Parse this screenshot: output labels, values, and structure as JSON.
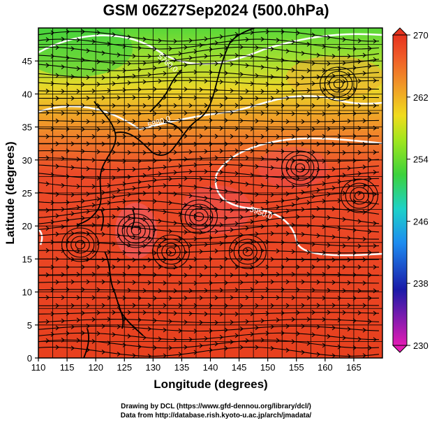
{
  "title": "GSM 06Z27Sep2024 (500.0hPa)",
  "x_axis": {
    "label": "Longitude (degrees)",
    "ticks": [
      "110",
      "115",
      "120",
      "125",
      "130",
      "135",
      "140",
      "145",
      "150",
      "155",
      "160",
      "165"
    ]
  },
  "y_axis": {
    "label": "Latitude (degrees)",
    "ticks": [
      "0",
      "5",
      "10",
      "15",
      "20",
      "25",
      "30",
      "35",
      "40",
      "45"
    ]
  },
  "colorbar": {
    "ticks": [
      "230",
      "238",
      "246",
      "254",
      "262",
      "270"
    ],
    "colors": [
      "#e31ab4",
      "#1a1aa8",
      "#1e8cf0",
      "#1ed2c8",
      "#3cd23c",
      "#a0e61e",
      "#f0dc1e",
      "#f09628",
      "#f05a28",
      "#e6321e"
    ]
  },
  "contour_labels": [
    "5760.0",
    "5880.0",
    "5950.0"
  ],
  "credits": [
    "Drawing by DCL (https://www.gfd-dennou.org/library/dcl/)",
    "Data from http://database.rish.kyoto-u.ac.jp/arch/jmadata/"
  ]
}
